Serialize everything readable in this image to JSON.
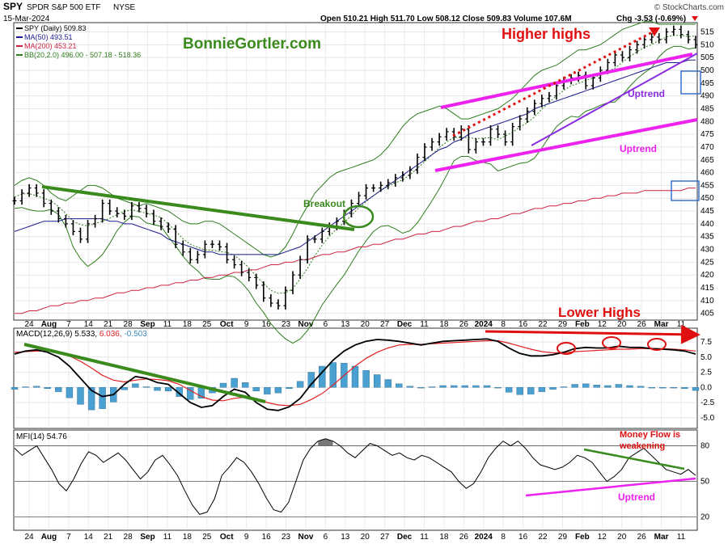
{
  "header": {
    "ticker": "SPY",
    "name": "SPDR S&P 500 ETF",
    "exchange": "NYSE",
    "date": "15-Mar-2024",
    "ohlc_text": "Open 510.21  High 511.70  Low 508.12  Close 509.83  Volume 107.6M",
    "chg_text": "Chg -3.53 (-0.69%)",
    "brand": "© StockCharts.com"
  },
  "legend": {
    "spy": "SPY (Daily) 509.83",
    "ma50": "MA(50) 493.51",
    "ma200": "MA(200) 453.21",
    "bb": "BB(20,2.0) 496.00 - 507.18 - 518.36",
    "macd_name": "MACD(12,26,9) 5.533,",
    "macd_sig": "6.036,",
    "macd_hist": "-0.503",
    "mfi": "MFI(14) 54.76"
  },
  "annotations": {
    "watermark": "BonnieGortler.com",
    "higher_highs": "Higher highs",
    "uptrend_upper": "Uptrend",
    "uptrend_lower": "Uptrend",
    "breakout": "Breakout",
    "lower_highs": "Lower Highs",
    "money_flow_1": "Money Flow is",
    "money_flow_2": "weakening",
    "mfi_uptrend": "Uptrend"
  },
  "colors": {
    "price": "#000000",
    "ma50": "#1a1a8c",
    "ma200": "#cc2244",
    "bb": "#2e7d1e",
    "trend_magenta": "#ee22ee",
    "trend_green": "#3a8a1e",
    "annot_red": "#e01010",
    "uptrend_purple": "#8a2be2",
    "macd_signal": "#e02020",
    "hist": "#4aa0d0"
  },
  "chart_data": [
    {
      "type": "line",
      "panel": "price",
      "x_tick_labels": [
        "24",
        "Aug",
        "7",
        "14",
        "21",
        "28",
        "Sep",
        "11",
        "18",
        "25",
        "Oct",
        "9",
        "16",
        "23",
        "Nov",
        "6",
        "13",
        "20",
        "27",
        "Dec",
        "11",
        "18",
        "26",
        "2024",
        "8",
        "16",
        "22",
        "29",
        "Feb",
        "12",
        "20",
        "26",
        "Mar",
        "11"
      ],
      "y_ticks": [
        405,
        410,
        415,
        420,
        425,
        430,
        435,
        440,
        445,
        450,
        455,
        460,
        465,
        470,
        475,
        480,
        485,
        490,
        495,
        500,
        505,
        510,
        515
      ],
      "ylim": [
        403,
        518
      ],
      "series": [
        {
          "name": "SPY (Daily) 509.83",
          "values": [
            449,
            452,
            454,
            452,
            448,
            445,
            442,
            440,
            437,
            434,
            440,
            442,
            448,
            445,
            444,
            443,
            447,
            446,
            444,
            441,
            439,
            438,
            432,
            429,
            426,
            428,
            432,
            432,
            431,
            426,
            424,
            421,
            419,
            416,
            411,
            409,
            408,
            414,
            420,
            426,
            434,
            434,
            437,
            439,
            441,
            444,
            448,
            451,
            454,
            454,
            455,
            456,
            458,
            459,
            461,
            466,
            470,
            472,
            474,
            476,
            474,
            477,
            469,
            472,
            472,
            477,
            475,
            472,
            478,
            481,
            484,
            487,
            489,
            490,
            494,
            496,
            497,
            498,
            494,
            497,
            500,
            503,
            506,
            505,
            508,
            510,
            512,
            513,
            512,
            515,
            516,
            514,
            512,
            510
          ]
        },
        {
          "name": "MA(50) 493.51",
          "values": [
            437,
            438,
            439,
            440,
            441,
            441,
            441,
            442,
            442,
            442,
            442,
            442,
            442,
            441,
            441,
            440,
            440,
            439,
            438,
            437,
            436,
            434,
            433,
            432,
            431,
            430,
            429,
            429,
            428,
            428,
            428,
            428,
            428,
            428,
            428,
            428,
            428,
            429,
            430,
            431,
            433,
            435,
            437,
            439,
            441,
            443,
            445,
            447,
            449,
            451,
            453,
            455,
            457,
            459,
            461,
            463,
            465,
            467,
            469,
            470,
            472,
            473,
            475,
            476,
            477,
            478,
            479,
            480,
            481,
            482,
            483,
            485,
            486,
            487,
            488,
            489,
            490,
            491,
            492,
            493,
            494,
            495,
            496,
            497,
            498,
            499,
            500,
            501,
            502,
            503,
            503,
            503,
            504,
            504
          ]
        },
        {
          "name": "MA(200) 453.21",
          "values": [
            405,
            405,
            406,
            406,
            407,
            408,
            408,
            409,
            409,
            410,
            410,
            411,
            411,
            412,
            413,
            413,
            414,
            414,
            415,
            415,
            416,
            416,
            417,
            417,
            418,
            418,
            419,
            419,
            420,
            420,
            421,
            421,
            422,
            422,
            423,
            424,
            424,
            425,
            425,
            426,
            426,
            427,
            428,
            428,
            429,
            429,
            430,
            431,
            431,
            432,
            432,
            433,
            434,
            434,
            435,
            436,
            436,
            437,
            437,
            438,
            439,
            439,
            440,
            441,
            441,
            442,
            442,
            443,
            444,
            444,
            445,
            446,
            446,
            447,
            447,
            448,
            448,
            449,
            449,
            450,
            450,
            451,
            451,
            452,
            452,
            452,
            453,
            453,
            453,
            453,
            453,
            453,
            454,
            454
          ]
        },
        {
          "name": "BB(20,2.0) 496.00 - 507.18 - 518.36",
          "values": [
            455,
            457,
            458,
            457,
            455,
            452,
            450,
            449,
            451,
            453,
            455,
            455,
            454,
            452,
            450,
            449,
            448,
            447,
            448,
            447,
            446,
            445,
            443,
            441,
            440,
            440,
            441,
            441,
            440,
            438,
            436,
            434,
            432,
            430,
            428,
            427,
            428,
            431,
            436,
            442,
            447,
            452,
            455,
            458,
            460,
            461,
            462,
            463,
            464,
            465,
            467,
            470,
            474,
            478,
            481,
            483,
            484,
            485,
            486,
            485,
            483,
            481,
            481,
            482,
            483,
            484,
            485,
            487,
            489,
            492,
            495,
            498,
            500,
            501,
            502,
            504,
            506,
            508,
            508,
            509,
            510,
            512,
            514,
            516,
            517,
            518,
            519,
            519,
            518,
            518,
            518,
            518,
            518,
            518
          ]
        }
      ]
    },
    {
      "type": "line",
      "panel": "macd",
      "y_ticks": [
        -5.0,
        -2.5,
        0.0,
        2.5,
        5.0,
        7.5
      ],
      "ylim": [
        -6.5,
        9.5
      ],
      "series": [
        {
          "name": "MACD(12,26,9) 5.533",
          "values": [
            5.5,
            6.0,
            6.2,
            5.8,
            5.0,
            3.5,
            1.5,
            -0.5,
            -1.5,
            -1.2,
            0.5,
            1.8,
            1.5,
            0.8,
            0.5,
            -1.0,
            -2.5,
            -3.3,
            -3.0,
            -1.5,
            -0.3,
            -0.8,
            -2.5,
            -3.6,
            -3.8,
            -3.2,
            -1.8,
            0.5,
            2.5,
            4.5,
            6.0,
            7.0,
            7.6,
            7.9,
            7.8,
            7.6,
            7.3,
            7.0,
            7.3,
            7.6,
            7.7,
            7.8,
            7.9,
            8.0,
            7.6,
            6.5,
            5.6,
            5.2,
            5.2,
            5.4,
            5.8,
            6.4,
            6.6,
            6.5,
            6.5,
            6.8,
            6.6,
            6.6,
            6.4,
            6.3,
            6.2,
            6.0,
            5.5
          ]
        },
        {
          "name": "6.036",
          "values": [
            5.8,
            5.9,
            6.0,
            6.0,
            5.7,
            5.2,
            4.3,
            3.2,
            2.0,
            1.2,
            0.9,
            1.2,
            1.4,
            1.3,
            1.1,
            0.5,
            -0.5,
            -1.5,
            -2.1,
            -2.2,
            -1.8,
            -1.6,
            -1.9,
            -2.5,
            -2.9,
            -3.0,
            -2.8,
            -2.0,
            -1.0,
            0.4,
            2.0,
            3.5,
            4.8,
            5.8,
            6.5,
            7.0,
            7.1,
            7.1,
            7.2,
            7.3,
            7.4,
            7.5,
            7.6,
            7.7,
            7.7,
            7.3,
            6.8,
            6.3,
            5.9,
            5.7,
            5.7,
            5.9,
            6.0,
            6.1,
            6.2,
            6.3,
            6.3,
            6.4,
            6.4,
            6.4,
            6.3,
            6.2,
            6.0
          ]
        },
        {
          "name": "-0.503",
          "values": [
            -0.3,
            0.1,
            0.2,
            -0.2,
            -0.7,
            -1.7,
            -2.8,
            -3.7,
            -3.5,
            -2.4,
            -0.4,
            0.6,
            0.1,
            -0.5,
            -0.6,
            -1.5,
            -2.0,
            -1.8,
            -0.9,
            0.7,
            1.5,
            0.8,
            -0.6,
            -1.1,
            -0.9,
            -0.2,
            1.0,
            2.5,
            3.5,
            4.1,
            4.0,
            3.5,
            2.8,
            2.1,
            1.3,
            0.6,
            0.2,
            -0.1,
            0.1,
            0.3,
            0.3,
            0.3,
            0.3,
            0.3,
            -0.1,
            -0.8,
            -1.2,
            -1.1,
            -0.7,
            -0.3,
            0.1,
            0.5,
            0.6,
            0.4,
            0.3,
            0.5,
            0.3,
            0.2,
            0.0,
            -0.1,
            -0.1,
            -0.2,
            -0.5
          ]
        }
      ]
    },
    {
      "type": "line",
      "panel": "mfi",
      "y_ticks": [
        20,
        50,
        80
      ],
      "ylim": [
        10,
        92
      ],
      "series": [
        {
          "name": "MFI(14) 54.76",
          "values": [
            78,
            72,
            76,
            80,
            70,
            60,
            48,
            42,
            52,
            65,
            75,
            72,
            66,
            70,
            74,
            68,
            60,
            52,
            58,
            68,
            72,
            64,
            55,
            42,
            30,
            22,
            24,
            35,
            55,
            62,
            70,
            66,
            58,
            48,
            36,
            26,
            24,
            32,
            50,
            68,
            78,
            84,
            86,
            84,
            80,
            74,
            70,
            76,
            82,
            80,
            76,
            72,
            74,
            70,
            68,
            72,
            70,
            66,
            62,
            58,
            50,
            44,
            48,
            58,
            70,
            78,
            84,
            80,
            84,
            78,
            70,
            64,
            62,
            60,
            62,
            66,
            72,
            70,
            66,
            58,
            50,
            54,
            60,
            70,
            74,
            78,
            72,
            66,
            60,
            58,
            56,
            60,
            55
          ]
        }
      ]
    }
  ]
}
